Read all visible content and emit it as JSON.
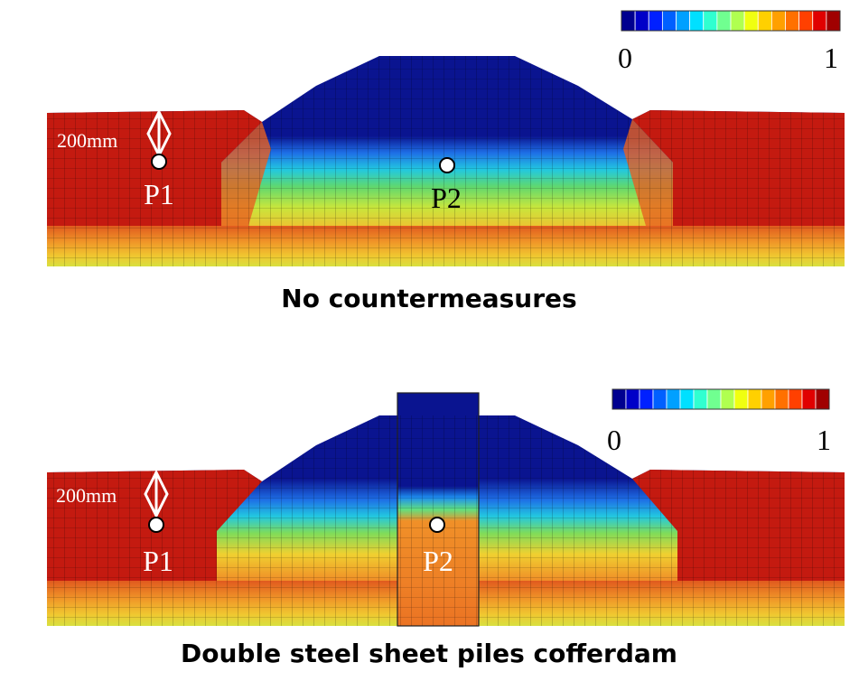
{
  "panels": [
    {
      "caption": "No countermeasures",
      "scale_label": "200mm",
      "points": [
        "P1",
        "P2"
      ],
      "colorbar": {
        "min_label": "0",
        "max_label": "1"
      }
    },
    {
      "caption": "Double steel sheet piles cofferdam",
      "scale_label": "200mm",
      "points": [
        "P1",
        "P2"
      ],
      "colorbar": {
        "min_label": "0",
        "max_label": "1"
      }
    }
  ]
}
